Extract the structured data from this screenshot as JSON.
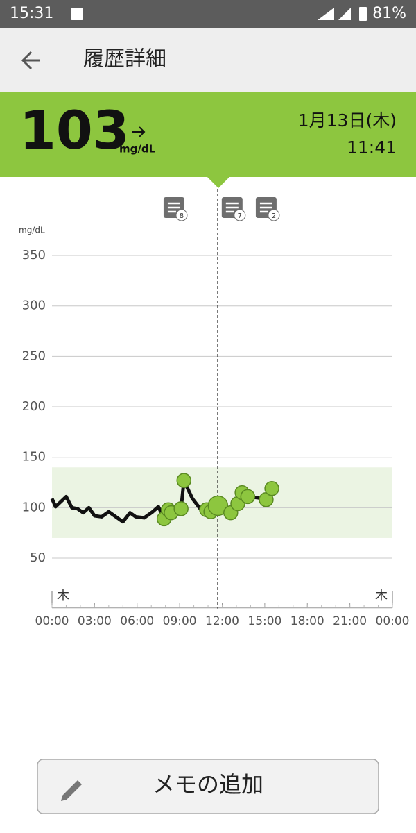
{
  "status_bar": {
    "time": "15:31",
    "battery": "81%"
  },
  "header": {
    "title": "履歴詳細"
  },
  "reading": {
    "value": "103",
    "unit": "mg/dL",
    "date": "1月13日(木)",
    "time": "11:41"
  },
  "chart_data": {
    "type": "line",
    "y_unit": "mg/dL",
    "ylim": [
      0,
      360
    ],
    "yticks": [
      50,
      100,
      150,
      200,
      250,
      300,
      350
    ],
    "xlim": [
      0,
      24
    ],
    "xticks": [
      {
        "value": 0,
        "label": "00:00"
      },
      {
        "value": 3,
        "label": "03:00"
      },
      {
        "value": 6,
        "label": "06:00"
      },
      {
        "value": 9,
        "label": "09:00"
      },
      {
        "value": 12,
        "label": "12:00"
      },
      {
        "value": 15,
        "label": "15:00"
      },
      {
        "value": 18,
        "label": "18:00"
      },
      {
        "value": 21,
        "label": "21:00"
      },
      {
        "value": 24,
        "label": "00:00"
      }
    ],
    "day_labels": [
      "木",
      "木"
    ],
    "target_range": [
      70,
      140
    ],
    "target_color": "#ebf4e3",
    "grid": true,
    "cursor_x": 11.68,
    "memos": [
      {
        "x": 8.6,
        "count": 8
      },
      {
        "x": 12.7,
        "count": 7
      },
      {
        "x": 15.1,
        "count": 2
      }
    ],
    "series": [
      {
        "color": "#111111",
        "x": [
          0,
          0.25,
          1.0,
          1.4,
          1.8,
          2.2,
          2.6,
          3.0,
          3.5,
          4.0,
          4.5,
          5.0,
          5.5,
          5.9,
          6.5,
          7.1,
          7.5,
          7.9,
          8.4,
          8.8,
          9.1,
          9.3,
          9.9,
          10.5,
          11.0,
          11.7,
          12.6,
          13.1,
          13.4,
          13.8,
          14.5,
          15.1,
          15.5
        ],
        "values": [
          109,
          101,
          111,
          100,
          99,
          95,
          100,
          92,
          91,
          96,
          91,
          86,
          95,
          91,
          90,
          96,
          101,
          89,
          95,
          97,
          99,
          127,
          109,
          98,
          96,
          102,
          95,
          104,
          115,
          111,
          110,
          108,
          119
        ]
      },
      {
        "color": "#8dc63f",
        "x": [
          7.9,
          8.2,
          8.4,
          9.1,
          9.3,
          10.9,
          11.2,
          11.7,
          12.6,
          13.1,
          13.4,
          13.8,
          15.1,
          15.5
        ],
        "values": [
          89,
          98,
          95,
          99,
          127,
          98,
          96,
          102,
          95,
          104,
          115,
          111,
          108,
          119
        ]
      }
    ]
  },
  "button": {
    "label": "メモの追加"
  }
}
